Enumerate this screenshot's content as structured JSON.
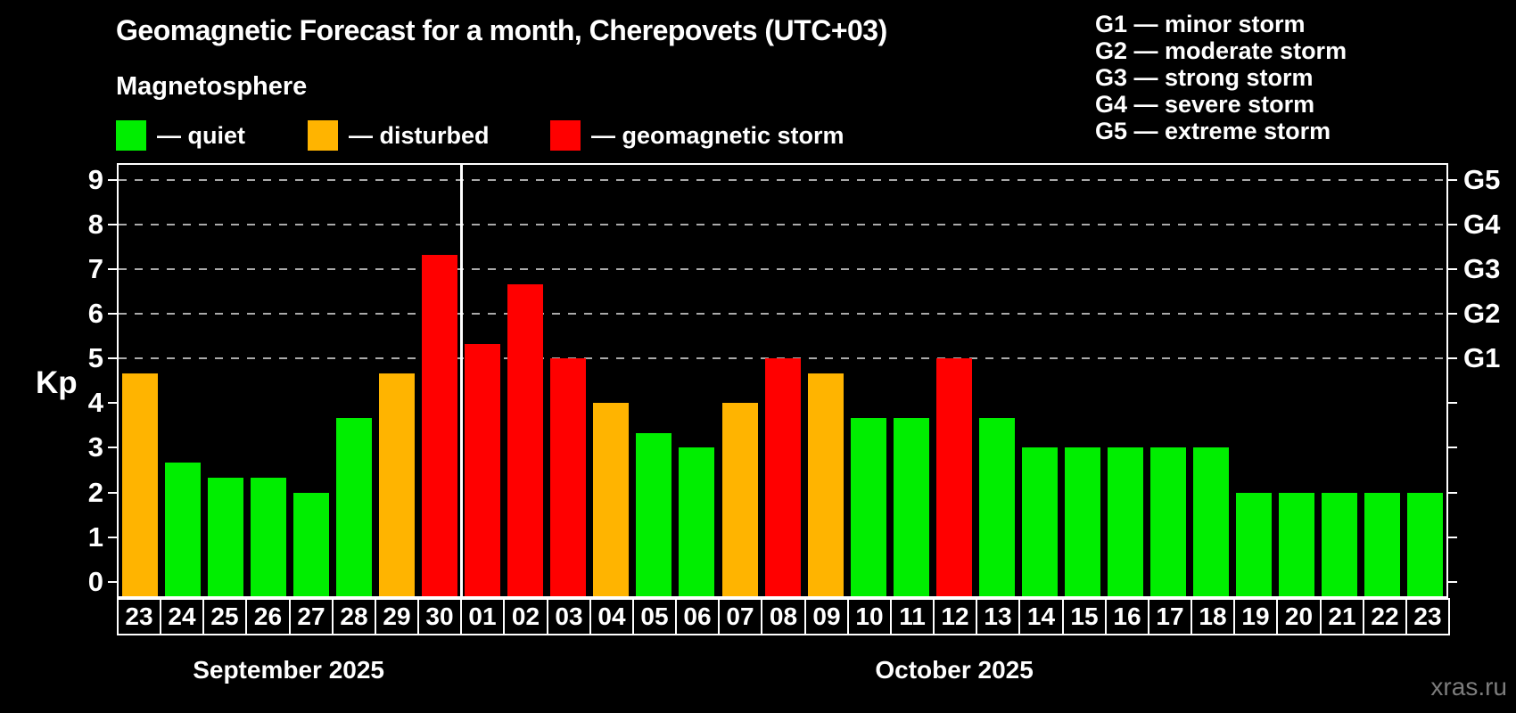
{
  "title": "Geomagnetic Forecast for a month, Cherepovets (UTC+03)",
  "subtitle": "Magnetosphere",
  "legend": {
    "items": [
      {
        "key": "quiet",
        "label": "— quiet",
        "color": "#00ee00"
      },
      {
        "key": "disturbed",
        "label": "— disturbed",
        "color": "#ffb400"
      },
      {
        "key": "storm",
        "label": "— geomagnetic storm",
        "color": "#ff0000"
      }
    ]
  },
  "g_legend": [
    "G1 — minor storm",
    "G2 — moderate storm",
    "G3 — strong storm",
    "G4 — severe storm",
    "G5 — extreme storm"
  ],
  "months": [
    {
      "label": "September 2025",
      "days": 8
    },
    {
      "label": "October 2025",
      "days": 23
    }
  ],
  "watermark": "xras.ru",
  "colors": {
    "background": "#000000",
    "axis": "#ffffff",
    "grid": "#aaaaaa",
    "text": "#ffffff",
    "watermark": "#7c7c7c",
    "quiet": "#00ee00",
    "disturbed": "#ffb400",
    "storm": "#ff0000"
  },
  "chart_data": {
    "type": "bar",
    "title": "Geomagnetic Forecast for a month, Cherepovets (UTC+03)",
    "xlabel": "",
    "ylabel": "Kp",
    "ylim": [
      -0.37,
      9.37
    ],
    "yticks": [
      0,
      1,
      2,
      3,
      4,
      5,
      6,
      7,
      8,
      9
    ],
    "gridlines_at": [
      5,
      6,
      7,
      8,
      9
    ],
    "grid": "dashed horizontal at G-storm levels only",
    "legend_position": "top-left",
    "right_axis": [
      {
        "kp": 5,
        "label": "G1"
      },
      {
        "kp": 6,
        "label": "G2"
      },
      {
        "kp": 7,
        "label": "G3"
      },
      {
        "kp": 8,
        "label": "G4"
      },
      {
        "kp": 9,
        "label": "G5"
      }
    ],
    "bars": [
      {
        "month": "September 2025",
        "day": "23",
        "value": 4.67,
        "level": "disturbed"
      },
      {
        "month": "September 2025",
        "day": "24",
        "value": 2.67,
        "level": "quiet"
      },
      {
        "month": "September 2025",
        "day": "25",
        "value": 2.33,
        "level": "quiet"
      },
      {
        "month": "September 2025",
        "day": "26",
        "value": 2.33,
        "level": "quiet"
      },
      {
        "month": "September 2025",
        "day": "27",
        "value": 2.0,
        "level": "quiet"
      },
      {
        "month": "September 2025",
        "day": "28",
        "value": 3.67,
        "level": "quiet"
      },
      {
        "month": "September 2025",
        "day": "29",
        "value": 4.67,
        "level": "disturbed"
      },
      {
        "month": "September 2025",
        "day": "30",
        "value": 7.33,
        "level": "storm"
      },
      {
        "month": "October 2025",
        "day": "01",
        "value": 5.33,
        "level": "storm"
      },
      {
        "month": "October 2025",
        "day": "02",
        "value": 6.67,
        "level": "storm"
      },
      {
        "month": "October 2025",
        "day": "03",
        "value": 5.0,
        "level": "storm"
      },
      {
        "month": "October 2025",
        "day": "04",
        "value": 4.0,
        "level": "disturbed"
      },
      {
        "month": "October 2025",
        "day": "05",
        "value": 3.33,
        "level": "quiet"
      },
      {
        "month": "October 2025",
        "day": "06",
        "value": 3.0,
        "level": "quiet"
      },
      {
        "month": "October 2025",
        "day": "07",
        "value": 4.0,
        "level": "disturbed"
      },
      {
        "month": "October 2025",
        "day": "08",
        "value": 5.0,
        "level": "storm"
      },
      {
        "month": "October 2025",
        "day": "09",
        "value": 4.67,
        "level": "disturbed"
      },
      {
        "month": "October 2025",
        "day": "10",
        "value": 3.67,
        "level": "quiet"
      },
      {
        "month": "October 2025",
        "day": "11",
        "value": 3.67,
        "level": "quiet"
      },
      {
        "month": "October 2025",
        "day": "12",
        "value": 5.0,
        "level": "storm"
      },
      {
        "month": "October 2025",
        "day": "13",
        "value": 3.67,
        "level": "quiet"
      },
      {
        "month": "October 2025",
        "day": "14",
        "value": 3.0,
        "level": "quiet"
      },
      {
        "month": "October 2025",
        "day": "15",
        "value": 3.0,
        "level": "quiet"
      },
      {
        "month": "October 2025",
        "day": "16",
        "value": 3.0,
        "level": "quiet"
      },
      {
        "month": "October 2025",
        "day": "17",
        "value": 3.0,
        "level": "quiet"
      },
      {
        "month": "October 2025",
        "day": "18",
        "value": 3.0,
        "level": "quiet"
      },
      {
        "month": "October 2025",
        "day": "19",
        "value": 2.0,
        "level": "quiet"
      },
      {
        "month": "October 2025",
        "day": "20",
        "value": 2.0,
        "level": "quiet"
      },
      {
        "month": "October 2025",
        "day": "21",
        "value": 2.0,
        "level": "quiet"
      },
      {
        "month": "October 2025",
        "day": "22",
        "value": 2.0,
        "level": "quiet"
      },
      {
        "month": "October 2025",
        "day": "23",
        "value": 2.0,
        "level": "quiet"
      }
    ]
  }
}
